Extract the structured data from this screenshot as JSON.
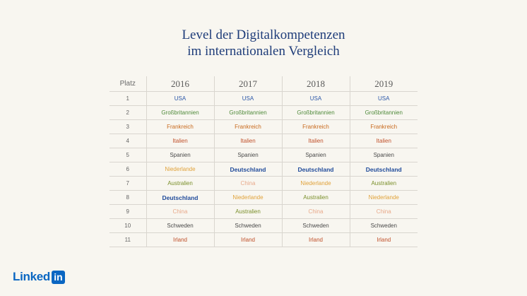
{
  "title": {
    "line1": "Level der Digitalkompetenzen",
    "line2": "im internationalen Vergleich"
  },
  "table": {
    "rank_header": "Platz",
    "years": [
      "2016",
      "2017",
      "2018",
      "2019"
    ],
    "rows": [
      {
        "rank": "1",
        "c": [
          [
            "USA",
            "#2b57a8",
            false
          ],
          [
            "USA",
            "#2b57a8",
            false
          ],
          [
            "USA",
            "#2b57a8",
            false
          ],
          [
            "USA",
            "#2b57a8",
            false
          ]
        ]
      },
      {
        "rank": "2",
        "c": [
          [
            "Großbritannien",
            "#4f8a3a",
            false
          ],
          [
            "Großbritannien",
            "#4f8a3a",
            false
          ],
          [
            "Großbritannien",
            "#4f8a3a",
            false
          ],
          [
            "Großbritannien",
            "#4f8a3a",
            false
          ]
        ]
      },
      {
        "rank": "3",
        "c": [
          [
            "Frankreich",
            "#c86a1e",
            false
          ],
          [
            "Frankreich",
            "#c86a1e",
            false
          ],
          [
            "Frankreich",
            "#c86a1e",
            false
          ],
          [
            "Frankreich",
            "#c86a1e",
            false
          ]
        ]
      },
      {
        "rank": "4",
        "c": [
          [
            "Italien",
            "#c0502a",
            false
          ],
          [
            "Italien",
            "#c0502a",
            false
          ],
          [
            "Italien",
            "#c0502a",
            false
          ],
          [
            "Italien",
            "#c0502a",
            false
          ]
        ]
      },
      {
        "rank": "5",
        "c": [
          [
            "Spanien",
            "#4a4a4a",
            false
          ],
          [
            "Spanien",
            "#4a4a4a",
            false
          ],
          [
            "Spanien",
            "#4a4a4a",
            false
          ],
          [
            "Spanien",
            "#4a4a4a",
            false
          ]
        ]
      },
      {
        "rank": "6",
        "c": [
          [
            "Niederlande",
            "#e0a23a",
            false
          ],
          [
            "Deutschland",
            "#1f4a9a",
            true
          ],
          [
            "Deutschland",
            "#1f4a9a",
            true
          ],
          [
            "Deutschland",
            "#1f4a9a",
            true
          ]
        ]
      },
      {
        "rank": "7",
        "c": [
          [
            "Australien",
            "#7a8f2a",
            false
          ],
          [
            "China",
            "#e8a98a",
            false
          ],
          [
            "Niederlande",
            "#e0a23a",
            false
          ],
          [
            "Australien",
            "#7a8f2a",
            false
          ]
        ]
      },
      {
        "rank": "8",
        "c": [
          [
            "Deutschland",
            "#1f4a9a",
            true
          ],
          [
            "Niederlande",
            "#e0a23a",
            false
          ],
          [
            "Australien",
            "#7a8f2a",
            false
          ],
          [
            "Niederlande",
            "#e0a23a",
            false
          ]
        ]
      },
      {
        "rank": "9",
        "c": [
          [
            "China",
            "#e8a98a",
            false
          ],
          [
            "Australien",
            "#7a8f2a",
            false
          ],
          [
            "China",
            "#e8a98a",
            false
          ],
          [
            "China",
            "#e8a98a",
            false
          ]
        ]
      },
      {
        "rank": "10",
        "c": [
          [
            "Schweden",
            "#4a4a4a",
            false
          ],
          [
            "Schweden",
            "#4a4a4a",
            false
          ],
          [
            "Schweden",
            "#4a4a4a",
            false
          ],
          [
            "Schweden",
            "#4a4a4a",
            false
          ]
        ]
      },
      {
        "rank": "11",
        "c": [
          [
            "Irland",
            "#c0502a",
            false
          ],
          [
            "Irland",
            "#c0502a",
            false
          ],
          [
            "Irland",
            "#c0502a",
            false
          ],
          [
            "Irland",
            "#c0502a",
            false
          ]
        ]
      }
    ]
  },
  "logo": {
    "word": "Linked",
    "box": "in"
  }
}
